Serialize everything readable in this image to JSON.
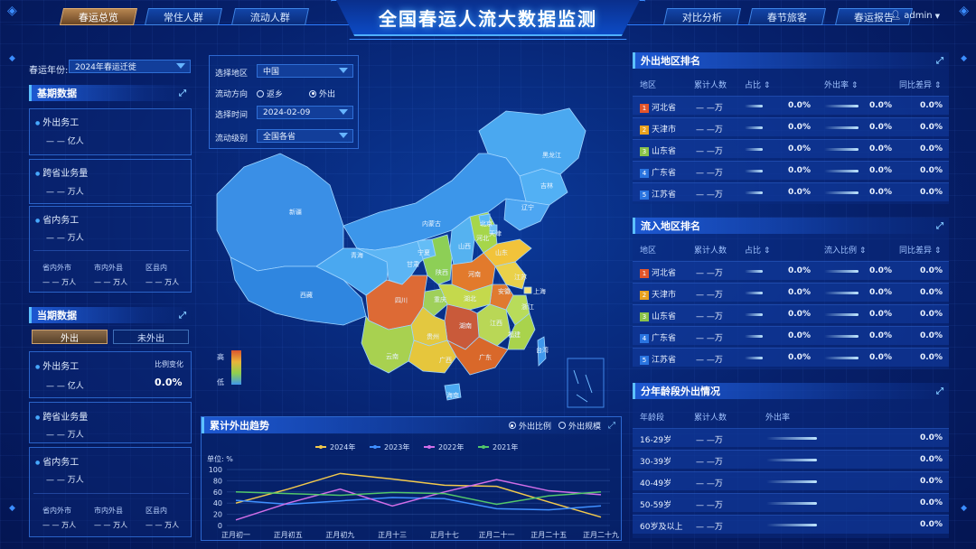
{
  "header": {
    "title": "全国春运人流大数据监测",
    "nav_left": [
      "春运总览",
      "常住人群",
      "流动人群"
    ],
    "nav_right": [
      "对比分析",
      "春节旅客",
      "春运报告"
    ],
    "user": "admin",
    "active_tab": "春运总览"
  },
  "filters": {
    "year_label": "春运年份:",
    "year_value": "2024年春运迁徙",
    "region_label": "选择地区",
    "region_value": "中国",
    "direction_label": "流动方向",
    "direction_options": [
      "返乡",
      "外出"
    ],
    "direction_selected": "外出",
    "time_label": "选择时间",
    "time_value": "2024-02-09",
    "level_label": "流动级别",
    "level_value": "全国各省"
  },
  "base_panel": {
    "title": "基期数据",
    "items": [
      {
        "label": "外出务工",
        "value": "— — 亿人"
      },
      {
        "label": "跨省业务量",
        "value": "— — 万人"
      },
      {
        "label": "省内务工",
        "value": "— — 万人"
      }
    ],
    "sub_labels": [
      "省内外市",
      "市内外县",
      "区县内"
    ],
    "sub_values": [
      "— — 万人",
      "— — 万人",
      "— — 万人"
    ]
  },
  "current_panel": {
    "title": "当期数据",
    "toggle": [
      "外出",
      "未外出"
    ],
    "items": [
      {
        "label": "外出务工",
        "value": "— — 亿人"
      },
      {
        "label": "跨省业务量",
        "value": "— — 万人"
      },
      {
        "label": "省内务工",
        "value": "— — 万人"
      }
    ],
    "ratio_label": "比例变化",
    "ratio_value": "0.0%",
    "sub_labels": [
      "省内外市",
      "市内外县",
      "区县内"
    ],
    "sub_values": [
      "— — 万人",
      "— — 万人",
      "— — 万人"
    ]
  },
  "map": {
    "legend_high": "高",
    "legend_low": "低",
    "provinces": [
      "黑龙江",
      "吉林",
      "辽宁",
      "内蒙古",
      "北京",
      "天津",
      "河北",
      "山西",
      "山东",
      "宁夏",
      "新疆",
      "甘肃",
      "青海",
      "陕西",
      "河南",
      "江苏",
      "上海",
      "安徽",
      "湖北",
      "西藏",
      "四川",
      "重庆",
      "浙江",
      "江西",
      "湖南",
      "福建",
      "台湾",
      "贵州",
      "云南",
      "广西",
      "广东",
      "海南"
    ]
  },
  "out_rank": {
    "title": "外出地区排名",
    "headers": [
      "地区",
      "累计人数",
      "占比 ⇕",
      "外出率 ⇕",
      "同比差异 ⇕"
    ],
    "rows": [
      {
        "rank": "1",
        "name": "河北省",
        "count": "— —万",
        "pct": "0.0%",
        "rate": "0.0%",
        "diff": "0.0%"
      },
      {
        "rank": "2",
        "name": "天津市",
        "count": "— —万",
        "pct": "0.0%",
        "rate": "0.0%",
        "diff": "0.0%"
      },
      {
        "rank": "3",
        "name": "山东省",
        "count": "— —万",
        "pct": "0.0%",
        "rate": "0.0%",
        "diff": "0.0%"
      },
      {
        "rank": "4",
        "name": "广东省",
        "count": "— —万",
        "pct": "0.0%",
        "rate": "0.0%",
        "diff": "0.0%"
      },
      {
        "rank": "5",
        "name": "江苏省",
        "count": "— —万",
        "pct": "0.0%",
        "rate": "0.0%",
        "diff": "0.0%"
      }
    ]
  },
  "in_rank": {
    "title": "流入地区排名",
    "headers": [
      "地区",
      "累计人数",
      "占比 ⇕",
      "流入比例 ⇕",
      "同比差异 ⇕"
    ],
    "rows": [
      {
        "rank": "1",
        "name": "河北省",
        "count": "— —万",
        "pct": "0.0%",
        "rate": "0.0%",
        "diff": "0.0%"
      },
      {
        "rank": "2",
        "name": "天津市",
        "count": "— —万",
        "pct": "0.0%",
        "rate": "0.0%",
        "diff": "0.0%"
      },
      {
        "rank": "3",
        "name": "山东省",
        "count": "— —万",
        "pct": "0.0%",
        "rate": "0.0%",
        "diff": "0.0%"
      },
      {
        "rank": "4",
        "name": "广东省",
        "count": "— —万",
        "pct": "0.0%",
        "rate": "0.0%",
        "diff": "0.0%"
      },
      {
        "rank": "5",
        "name": "江苏省",
        "count": "— —万",
        "pct": "0.0%",
        "rate": "0.0%",
        "diff": "0.0%"
      }
    ]
  },
  "rank_colors": [
    "#e2552b",
    "#e9a21f",
    "#8bc34a",
    "#2a74e0",
    "#2a74e0"
  ],
  "age_panel": {
    "title": "分年龄段外出情况",
    "headers": [
      "年龄段",
      "累计人数",
      "外出率"
    ],
    "rows": [
      {
        "age": "16-29岁",
        "count": "— —万",
        "rate": "0.0%"
      },
      {
        "age": "30-39岁",
        "count": "— —万",
        "rate": "0.0%"
      },
      {
        "age": "40-49岁",
        "count": "— —万",
        "rate": "0.0%"
      },
      {
        "age": "50-59岁",
        "count": "— —万",
        "rate": "0.0%"
      },
      {
        "age": "60岁及以上",
        "count": "— —万",
        "rate": "0.0%"
      }
    ]
  },
  "trend": {
    "title": "累计外出趋势",
    "radio": [
      "外出比例",
      "外出规模"
    ],
    "radio_selected": "外出比例",
    "unit": "单位: %"
  },
  "chart_data": {
    "type": "line",
    "title": "累计外出趋势",
    "xlabel": "",
    "ylabel": "单位: %",
    "ylim": [
      0,
      100
    ],
    "yticks": [
      0,
      20,
      40,
      60,
      80,
      100
    ],
    "categories": [
      "正月初一",
      "正月初五",
      "正月初九",
      "正月十三",
      "正月十七",
      "正月二十一",
      "正月二十五",
      "正月二十九"
    ],
    "series": [
      {
        "name": "2024年",
        "color": "#f2c94c",
        "values": [
          40,
          65,
          93,
          83,
          72,
          70,
          42,
          15
        ]
      },
      {
        "name": "2023年",
        "color": "#3f8fff",
        "values": [
          45,
          38,
          44,
          50,
          48,
          30,
          28,
          35
        ]
      },
      {
        "name": "2022年",
        "color": "#d16ee8",
        "values": [
          10,
          40,
          65,
          35,
          60,
          82,
          62,
          55
        ]
      },
      {
        "name": "2021年",
        "color": "#52c76a",
        "values": [
          60,
          57,
          54,
          59,
          57,
          38,
          53,
          60
        ]
      }
    ],
    "legend_position": "top",
    "grid": true
  }
}
